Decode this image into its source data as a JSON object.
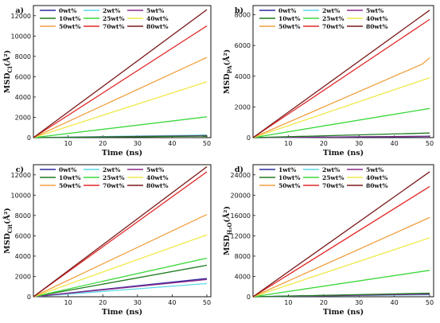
{
  "colors": {
    "0wt%": "#2a2aa0",
    "2wt%": "#5ad8e8",
    "5wt%": "#8a2a8a",
    "10wt%": "#1f7a1f",
    "25wt%": "#3cd83c",
    "40wt%": "#f0e84a",
    "50wt%": "#f0a040",
    "70wt%": "#e02828",
    "80wt%": "#7a1a1a",
    "1wt%": "#2a2aa0"
  },
  "chart_data": [
    {
      "type": "line",
      "panel": "a)",
      "ylabel_main": "MSD",
      "ylabel_sub": "Cl",
      "ylabel_unit": "(Å²)",
      "xlabel": "Time (ns)",
      "xlim": [
        0,
        50
      ],
      "ylim": [
        0,
        13000
      ],
      "xticks": [
        10,
        20,
        30,
        40,
        50
      ],
      "yticks": [
        0,
        2000,
        4000,
        6000,
        8000,
        10000,
        12000
      ],
      "legend_entries": [
        "0wt%",
        "2wt%",
        "5wt%",
        "10wt%",
        "25wt%",
        "40wt%",
        "50wt%",
        "70wt%",
        "80wt%"
      ],
      "series": [
        {
          "name": "0wt%",
          "x": [
            0,
            50
          ],
          "y": [
            0,
            180
          ]
        },
        {
          "name": "2wt%",
          "x": [
            0,
            50
          ],
          "y": [
            0,
            260
          ]
        },
        {
          "name": "5wt%",
          "x": [
            0,
            50
          ],
          "y": [
            0,
            200
          ]
        },
        {
          "name": "10wt%",
          "x": [
            0,
            50
          ],
          "y": [
            0,
            150
          ]
        },
        {
          "name": "25wt%",
          "x": [
            0,
            50
          ],
          "y": [
            0,
            2050
          ]
        },
        {
          "name": "40wt%",
          "x": [
            0,
            50
          ],
          "y": [
            0,
            5500
          ]
        },
        {
          "name": "50wt%",
          "x": [
            0,
            50
          ],
          "y": [
            0,
            7900
          ]
        },
        {
          "name": "70wt%",
          "x": [
            0,
            50
          ],
          "y": [
            0,
            11000
          ]
        },
        {
          "name": "80wt%",
          "x": [
            0,
            50
          ],
          "y": [
            0,
            12600
          ]
        }
      ]
    },
    {
      "type": "line",
      "panel": "b)",
      "ylabel_main": "MSD",
      "ylabel_sub": "PA",
      "ylabel_unit": "(Å²)",
      "xlabel": "Time (ns)",
      "xlim": [
        0,
        50
      ],
      "ylim": [
        0,
        8600
      ],
      "xticks": [
        10,
        20,
        30,
        40,
        50
      ],
      "yticks": [
        0,
        2000,
        4000,
        6000,
        8000
      ],
      "legend_entries": [
        "0wt%",
        "2wt%",
        "5wt%",
        "10wt%",
        "25wt%",
        "40wt%",
        "50wt%",
        "70wt%",
        "80wt%"
      ],
      "series": [
        {
          "name": "0wt%",
          "x": [
            0,
            50
          ],
          "y": [
            0,
            80
          ]
        },
        {
          "name": "2wt%",
          "x": [
            0,
            50
          ],
          "y": [
            0,
            100
          ]
        },
        {
          "name": "5wt%",
          "x": [
            0,
            50
          ],
          "y": [
            0,
            90
          ]
        },
        {
          "name": "10wt%",
          "x": [
            0,
            50
          ],
          "y": [
            0,
            300
          ]
        },
        {
          "name": "25wt%",
          "x": [
            0,
            50
          ],
          "y": [
            0,
            1900
          ]
        },
        {
          "name": "40wt%",
          "x": [
            0,
            50
          ],
          "y": [
            0,
            3900
          ]
        },
        {
          "name": "50wt%",
          "x": [
            0,
            48,
            50
          ],
          "y": [
            0,
            4800,
            5200
          ]
        },
        {
          "name": "70wt%",
          "x": [
            0,
            50
          ],
          "y": [
            0,
            7700
          ]
        },
        {
          "name": "80wt%",
          "x": [
            0,
            50
          ],
          "y": [
            0,
            8300
          ]
        }
      ]
    },
    {
      "type": "line",
      "panel": "c)",
      "ylabel_main": "MSD",
      "ylabel_sub": "Cit",
      "ylabel_unit": "(Å²)",
      "xlabel": "Time (ns)",
      "xlim": [
        0,
        50
      ],
      "ylim": [
        0,
        13000
      ],
      "xticks": [
        10,
        20,
        30,
        40,
        50
      ],
      "yticks": [
        0,
        2000,
        4000,
        6000,
        8000,
        10000,
        12000
      ],
      "legend_entries": [
        "0wt%",
        "2wt%",
        "5wt%",
        "10wt%",
        "25wt%",
        "40wt%",
        "50wt%",
        "70wt%",
        "80wt%"
      ],
      "series": [
        {
          "name": "0wt%",
          "x": [
            0,
            50
          ],
          "y": [
            0,
            1800
          ]
        },
        {
          "name": "2wt%",
          "x": [
            0,
            50
          ],
          "y": [
            0,
            1300
          ]
        },
        {
          "name": "5wt%",
          "x": [
            0,
            50
          ],
          "y": [
            0,
            1700
          ]
        },
        {
          "name": "10wt%",
          "x": [
            0,
            50
          ],
          "y": [
            0,
            3100
          ]
        },
        {
          "name": "25wt%",
          "x": [
            0,
            50
          ],
          "y": [
            0,
            3800
          ]
        },
        {
          "name": "40wt%",
          "x": [
            0,
            50
          ],
          "y": [
            0,
            6100
          ]
        },
        {
          "name": "50wt%",
          "x": [
            0,
            50
          ],
          "y": [
            0,
            8100
          ]
        },
        {
          "name": "70wt%",
          "x": [
            0,
            50
          ],
          "y": [
            0,
            12300
          ]
        },
        {
          "name": "80wt%",
          "x": [
            0,
            50
          ],
          "y": [
            0,
            12800
          ]
        }
      ]
    },
    {
      "type": "line",
      "panel": "d)",
      "ylabel_main": "MSD",
      "ylabel_sub": "H₂O",
      "ylabel_unit": "(Å²)",
      "xlabel": "Time (ns)",
      "xlim": [
        0,
        50
      ],
      "ylim": [
        0,
        26000
      ],
      "xticks": [
        10,
        20,
        30,
        40,
        50
      ],
      "yticks": [
        0,
        4000,
        8000,
        12000,
        16000,
        20000,
        24000
      ],
      "legend_entries": [
        "1wt%",
        "2wt%",
        "5wt%",
        "10wt%",
        "25wt%",
        "40wt%",
        "50wt%",
        "70wt%",
        "80wt%"
      ],
      "series": [
        {
          "name": "1wt%",
          "x": [
            0,
            50
          ],
          "y": [
            0,
            600
          ]
        },
        {
          "name": "2wt%",
          "x": [
            0,
            50
          ],
          "y": [
            0,
            400
          ]
        },
        {
          "name": "5wt%",
          "x": [
            0,
            50
          ],
          "y": [
            0,
            500
          ]
        },
        {
          "name": "10wt%",
          "x": [
            0,
            50
          ],
          "y": [
            0,
            700
          ]
        },
        {
          "name": "25wt%",
          "x": [
            0,
            50
          ],
          "y": [
            0,
            5200
          ]
        },
        {
          "name": "40wt%",
          "x": [
            0,
            50
          ],
          "y": [
            0,
            11600
          ]
        },
        {
          "name": "50wt%",
          "x": [
            0,
            50
          ],
          "y": [
            0,
            15600
          ]
        },
        {
          "name": "70wt%",
          "x": [
            0,
            50
          ],
          "y": [
            0,
            21700
          ]
        },
        {
          "name": "80wt%",
          "x": [
            0,
            50
          ],
          "y": [
            0,
            24600
          ]
        }
      ]
    }
  ]
}
